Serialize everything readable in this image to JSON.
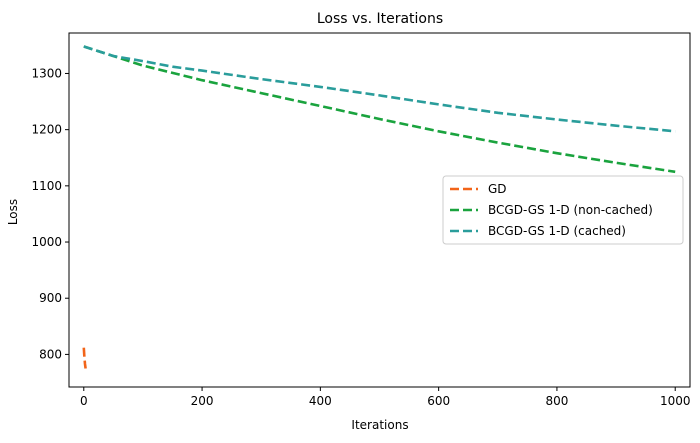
{
  "chart_data": {
    "type": "line",
    "title": "Loss vs. Iterations",
    "xlabel": "Iterations",
    "ylabel": "Loss",
    "xlim": [
      -25,
      1025
    ],
    "ylim": [
      742,
      1372
    ],
    "xticks": [
      0,
      200,
      400,
      600,
      800,
      1000
    ],
    "yticks": [
      800,
      900,
      1000,
      1100,
      1200,
      1300
    ],
    "grid": false,
    "legend_position": "center-right",
    "series": [
      {
        "name": "GD",
        "color": "#f26419",
        "dash": "dashed",
        "x": [
          0,
          1,
          2,
          3
        ],
        "y": [
          812,
          795,
          783,
          775
        ]
      },
      {
        "name": "BCGD-GS 1-D (non-cached)",
        "color": "#1aa33e",
        "dash": "dashed",
        "x": [
          0,
          100,
          200,
          300,
          400,
          500,
          600,
          700,
          800,
          900,
          1000
        ],
        "y": [
          1348,
          1314,
          1288,
          1265,
          1242,
          1219,
          1197,
          1177,
          1158,
          1141,
          1125
        ]
      },
      {
        "name": "BCGD-GS 1-D (cached)",
        "color": "#2a9d9b",
        "dash": "dashed",
        "x": [
          0,
          50,
          100,
          150,
          200,
          300,
          400,
          500,
          600,
          700,
          800,
          900,
          1000
        ],
        "y": [
          1348,
          1331,
          1322,
          1312,
          1305,
          1290,
          1276,
          1261,
          1245,
          1230,
          1218,
          1207,
          1197
        ]
      }
    ]
  }
}
